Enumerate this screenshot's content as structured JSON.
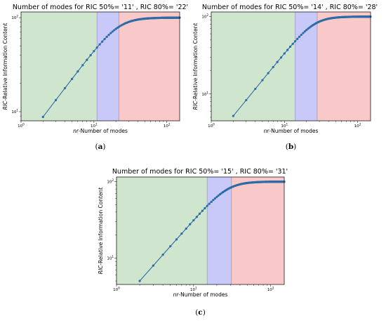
{
  "chart_data": [
    {
      "type": "line",
      "title": "Number of modes for RIC 50%= '11' , RIC 80%= '22'",
      "xlabel_italic": "nr",
      "xlabel_rest": "-Number of modes",
      "ylabel_italic": "RIC",
      "ylabel_rest": "-Relative Information Content",
      "xscale": "log",
      "yscale": "log",
      "xlim": [
        1,
        150
      ],
      "ylim": [
        8,
        115
      ],
      "x_ticks": [
        "10",
        "10",
        "10"
      ],
      "x_tick_sups": [
        "0",
        "1",
        "2"
      ],
      "y_ticks": [
        "10",
        "10"
      ],
      "y_tick_sups": [
        "1",
        "2"
      ],
      "ric50": 11,
      "ric80": 22,
      "regions": [
        {
          "from": 1,
          "to": 11,
          "color": "#cfe5cd"
        },
        {
          "from": 11,
          "to": 22,
          "color": "#c9c9f9"
        },
        {
          "from": 22,
          "to": 150,
          "color": "#f9c8c8"
        }
      ],
      "line_color": "#2d6ca6",
      "x_start": 2,
      "x_end": 150,
      "y_start": 8.8,
      "y_end": 100,
      "caption": "(a)"
    },
    {
      "type": "line",
      "title": "Number of modes for RIC 50%= '14' , RIC 80%= '28'",
      "xlabel_italic": "nr",
      "xlabel_rest": "-Number of modes",
      "ylabel_italic": "RIC",
      "ylabel_rest": "-Relative Information Content",
      "xscale": "log",
      "yscale": "log",
      "xlim": [
        1,
        150
      ],
      "ylim": [
        4.5,
        115
      ],
      "x_ticks": [
        "10",
        "10",
        "10"
      ],
      "x_tick_sups": [
        "0",
        "1",
        "2"
      ],
      "y_ticks": [
        "10",
        "10"
      ],
      "y_tick_sups": [
        "1",
        "2"
      ],
      "ric50": 14,
      "ric80": 28,
      "regions": [
        {
          "from": 1,
          "to": 14,
          "color": "#cfe5cd"
        },
        {
          "from": 14,
          "to": 28,
          "color": "#c9c9f9"
        },
        {
          "from": 28,
          "to": 150,
          "color": "#f9c8c8"
        }
      ],
      "line_color": "#2d6ca6",
      "x_start": 2,
      "x_end": 150,
      "y_start": 5.2,
      "y_end": 100,
      "caption": "(b)"
    },
    {
      "type": "line",
      "title": "Number of modes for RIC 50%= '15' , RIC 80%= '31'",
      "xlabel_italic": "nr",
      "xlabel_rest": "-Number of modes",
      "ylabel_italic": "RIC",
      "ylabel_rest": "-Relative Information Content",
      "xscale": "log",
      "yscale": "log",
      "xlim": [
        1,
        150
      ],
      "ylim": [
        4.5,
        115
      ],
      "x_ticks": [
        "10",
        "10",
        "10"
      ],
      "x_tick_sups": [
        "0",
        "1",
        "2"
      ],
      "y_ticks": [
        "10",
        "10"
      ],
      "y_tick_sups": [
        "1",
        "2"
      ],
      "ric50": 15,
      "ric80": 31,
      "regions": [
        {
          "from": 1,
          "to": 15,
          "color": "#cfe5cd"
        },
        {
          "from": 15,
          "to": 31,
          "color": "#c9c9f9"
        },
        {
          "from": 31,
          "to": 150,
          "color": "#f9c8c8"
        }
      ],
      "line_color": "#2d6ca6",
      "x_start": 2,
      "x_end": 150,
      "y_start": 5.0,
      "y_end": 100,
      "caption": "(c)"
    }
  ]
}
